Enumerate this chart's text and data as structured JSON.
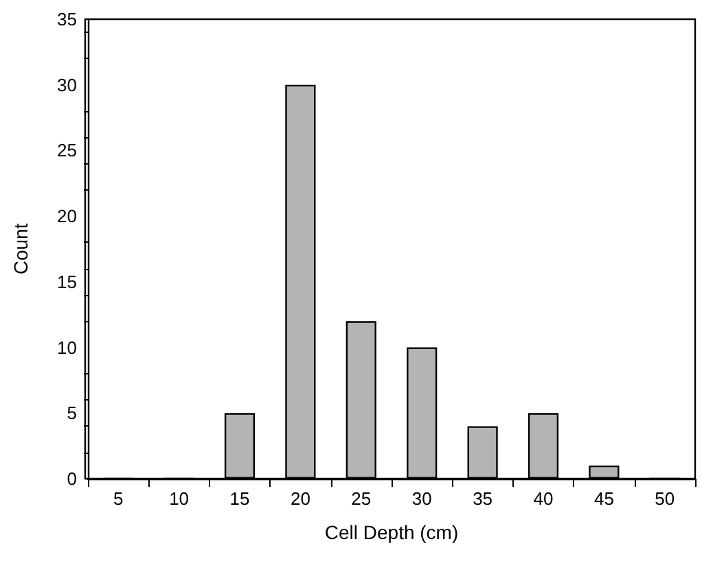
{
  "chart_data": {
    "type": "bar",
    "xlabel": "Cell Depth (cm)",
    "ylabel": "Count",
    "categories": [
      "5",
      "10",
      "15",
      "20",
      "25",
      "30",
      "35",
      "40",
      "45",
      "50"
    ],
    "values": [
      0,
      0,
      5,
      30,
      12,
      10,
      4,
      5,
      1,
      0
    ],
    "color": "#b4b4b4",
    "ylim": [
      0,
      35
    ],
    "yticks": [
      0,
      5,
      10,
      15,
      20,
      25,
      30,
      35
    ],
    "grid": false
  }
}
